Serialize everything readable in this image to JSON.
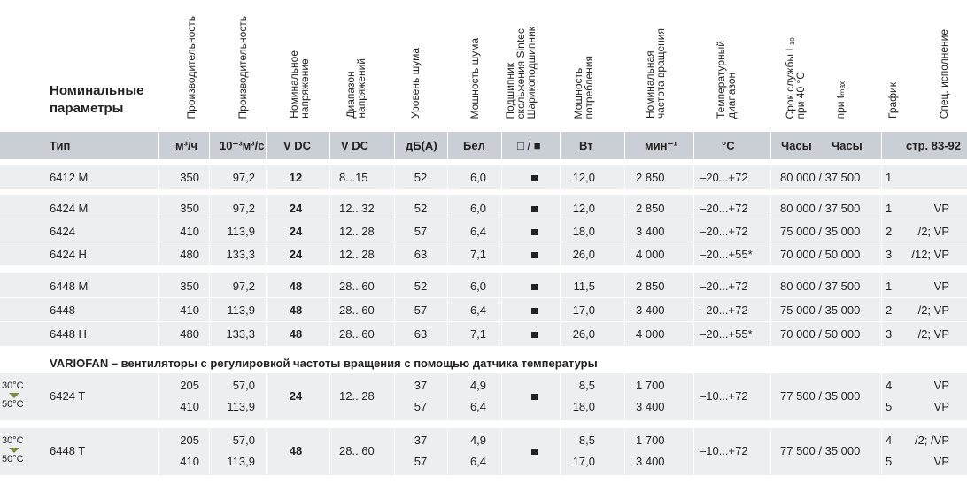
{
  "headers": {
    "main": [
      "Номинальные",
      "параметры"
    ],
    "cols": [
      {
        "key": "perf1",
        "text": "Производительность"
      },
      {
        "key": "perf2",
        "text": "Производительность"
      },
      {
        "key": "volt",
        "text": "Номинальное\nнапряжение"
      },
      {
        "key": "range",
        "text": "Диапазон\nнапряжений"
      },
      {
        "key": "noise",
        "text": "Уровень шума"
      },
      {
        "key": "power_noise",
        "text": "Мощность шума"
      },
      {
        "key": "bearing",
        "text": "Подшипник\nскольжения Sintec\nШарикоподшипник"
      },
      {
        "key": "power",
        "text": "Мощность\nпотребления"
      },
      {
        "key": "speed",
        "text": "Номинальная\nчастота вращения"
      },
      {
        "key": "temp",
        "text": "Температурный\nдиапазон"
      },
      {
        "key": "life",
        "text": "Срок службы L₁₀\nпри 40 °С"
      },
      {
        "key": "tmax",
        "text": "при tₘₐₓ"
      },
      {
        "key": "graph",
        "text": "График"
      },
      {
        "key": "special",
        "text": "Спец. исполнение"
      }
    ]
  },
  "units": {
    "type": "Тип",
    "perf1": "м³/ч",
    "perf2": "10⁻³м³/с",
    "volt": "V DC",
    "range": "V DC",
    "noise": "дБ(А)",
    "power_noise": "Бел",
    "bearing": "□ / ■",
    "power": "Вт",
    "speed": "мин⁻¹",
    "temp": "°C",
    "life": "Часы",
    "tmax": "Часы",
    "special": "стр. 83-92"
  },
  "rows": [
    {
      "type": "6412 M",
      "perf1": "350",
      "perf2": "97,2",
      "volt": "12",
      "range": "8...15",
      "noise": "52",
      "pn": "6,0",
      "power": "12,0",
      "speed": "2 850",
      "temp": "–20...+72",
      "life": "80 000 / 37 500",
      "graph": "1",
      "special": ""
    },
    {
      "type": "6424 M",
      "perf1": "350",
      "perf2": "97,2",
      "volt": "24",
      "range": "12...32",
      "noise": "52",
      "pn": "6,0",
      "power": "12,0",
      "speed": "2 850",
      "temp": "–20...+72",
      "life": "80 000 / 37 500",
      "graph": "1",
      "special": "VP"
    },
    {
      "type": "6424",
      "perf1": "410",
      "perf2": "113,9",
      "volt": "24",
      "range": "12...28",
      "noise": "57",
      "pn": "6,4",
      "power": "18,0",
      "speed": "3 400",
      "temp": "–20...+72",
      "life": "75 000 / 35 000",
      "graph": "2",
      "special": "/2; VP"
    },
    {
      "type": "6424 H",
      "perf1": "480",
      "perf2": "133,3",
      "volt": "24",
      "range": "12...28",
      "noise": "63",
      "pn": "7,1",
      "power": "26,0",
      "speed": "4 000",
      "temp": "–20...+55*",
      "life": "70 000 / 50 000",
      "graph": "3",
      "special": "/12; VP"
    },
    {
      "type": "6448 M",
      "perf1": "350",
      "perf2": "97,2",
      "volt": "48",
      "range": "28...60",
      "noise": "52",
      "pn": "6,0",
      "power": "11,5",
      "speed": "2 850",
      "temp": "–20...+72",
      "life": "80 000 / 37 500",
      "graph": "1",
      "special": "VP"
    },
    {
      "type": "6448",
      "perf1": "410",
      "perf2": "113,9",
      "volt": "48",
      "range": "28...60",
      "noise": "57",
      "pn": "6,4",
      "power": "17,0",
      "speed": "3 400",
      "temp": "–20...+72",
      "life": "75 000 / 35 000",
      "graph": "2",
      "special": "/2; VP"
    },
    {
      "type": "6448 H",
      "perf1": "480",
      "perf2": "133,3",
      "volt": "48",
      "range": "28...60",
      "noise": "63",
      "pn": "7,1",
      "power": "26,0",
      "speed": "4 000",
      "temp": "–20...+55*",
      "life": "70 000 / 50 000",
      "graph": "3",
      "special": "/2; VP"
    }
  ],
  "variofan_title": "VARIOFAN – вентиляторы с регулировкой частоты вращения с помощью датчика температуры",
  "variofan": [
    {
      "range_top": "30°C",
      "range_bottom": "50°C",
      "type": "6424 T",
      "perf1": [
        "205",
        "410"
      ],
      "perf2": [
        "57,0",
        "113,9"
      ],
      "volt": "24",
      "range": "12...28",
      "noise": [
        "37",
        "57"
      ],
      "pn": [
        "4,9",
        "6,4"
      ],
      "power": [
        "8,5",
        "18,0"
      ],
      "speed": [
        "1 700",
        "3 400"
      ],
      "temp": "–10...+72",
      "life": "77 500 / 35 000",
      "graph": [
        "4",
        "5"
      ],
      "special": [
        "VP",
        "VP"
      ]
    },
    {
      "range_top": "30°C",
      "range_bottom": "50°C",
      "type": "6448 T",
      "perf1": [
        "205",
        "410"
      ],
      "perf2": [
        "57,0",
        "113,9"
      ],
      "volt": "48",
      "range": "28...60",
      "noise": [
        "37",
        "57"
      ],
      "pn": [
        "4,9",
        "6,4"
      ],
      "power": [
        "8,5",
        "17,0"
      ],
      "speed": [
        "1 700",
        "3 400"
      ],
      "temp": "–10...+72",
      "life": "77 500 / 35 000",
      "graph": [
        "4",
        "5"
      ],
      "special": [
        "/2; /VP",
        "VP"
      ]
    }
  ]
}
